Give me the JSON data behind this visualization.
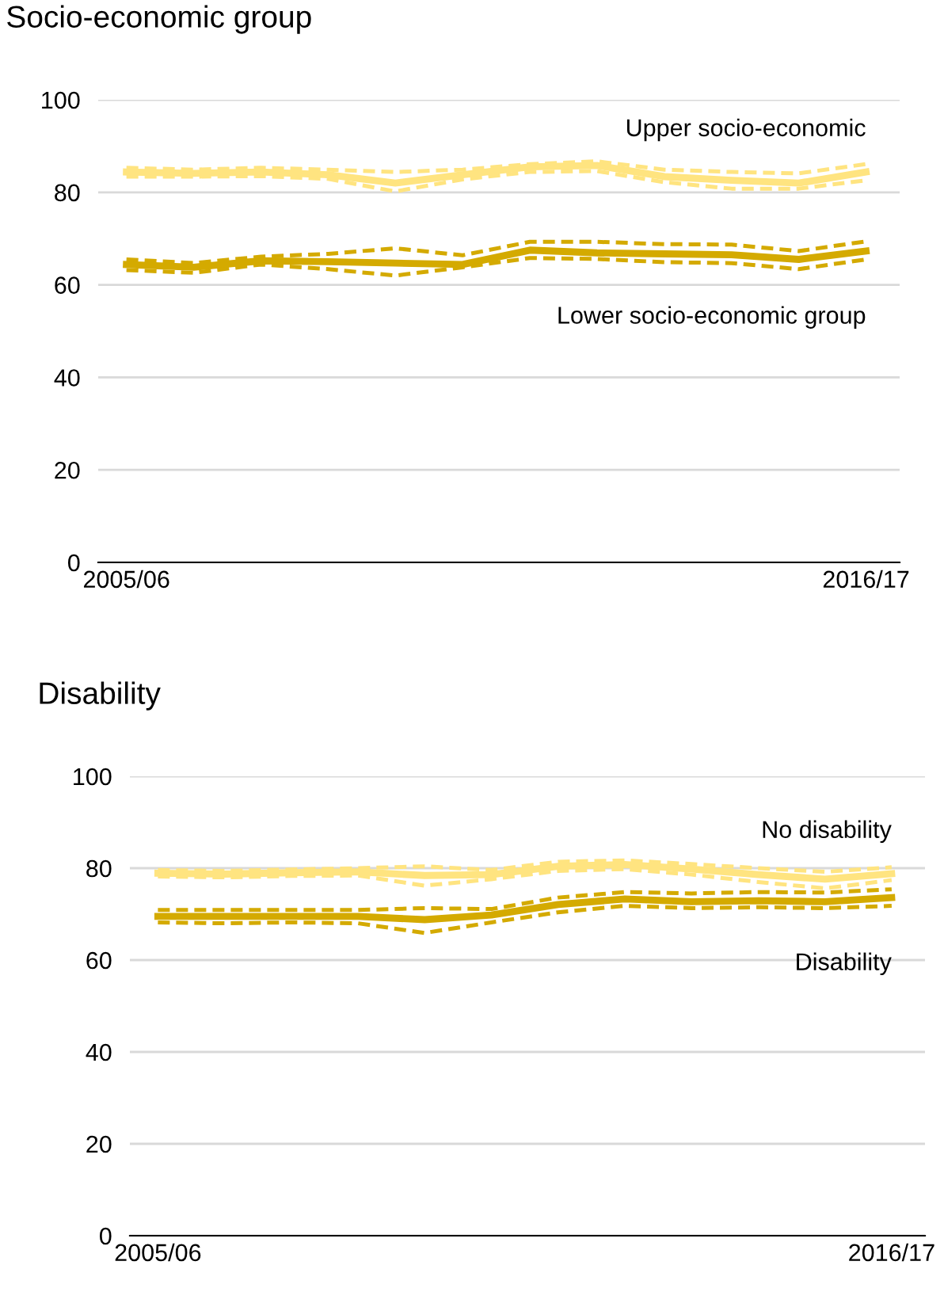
{
  "chart_data": [
    {
      "type": "line",
      "title": "Socio-economic group",
      "categories": [
        "2005/06",
        null,
        null,
        null,
        null,
        null,
        null,
        null,
        null,
        null,
        null,
        "2016/17"
      ],
      "ylim": [
        0,
        100
      ],
      "yticks": [
        0,
        20,
        40,
        60,
        80,
        100
      ],
      "grid": "y",
      "line_style": "solid",
      "series": [
        {
          "name": "Upper socio-economic",
          "color": "#ffe480",
          "values": [
            84.4,
            84.1,
            84.4,
            83.8,
            82.0,
            83.8,
            85.5,
            85.8,
            83.4,
            82.6,
            82.0,
            84.4
          ]
        },
        {
          "color": "#ffe480",
          "line_style": "dashed",
          "values": [
            83.4,
            83.4,
            83.5,
            82.9,
            80.2,
            82.8,
            84.4,
            84.6,
            82.2,
            80.8,
            80.8,
            82.6
          ]
        },
        {
          "color": "#ffe480",
          "line_style": "dashed",
          "values": [
            85.3,
            84.9,
            85.3,
            84.9,
            84.4,
            84.9,
            86.1,
            86.7,
            84.9,
            84.4,
            84.1,
            86.1
          ]
        },
        {
          "name": "Lower socio-economic group",
          "color": "#d4aa00",
          "values": [
            64.4,
            63.8,
            65.2,
            65.0,
            64.7,
            64.4,
            67.5,
            66.9,
            66.7,
            66.5,
            65.5,
            67.3
          ]
        },
        {
          "color": "#d4aa00",
          "line_style": "dashed",
          "values": [
            63.2,
            62.6,
            64.4,
            63.4,
            62.0,
            63.8,
            65.8,
            65.6,
            64.9,
            64.7,
            63.4,
            65.5
          ]
        },
        {
          "color": "#d4aa00",
          "line_style": "dashed",
          "values": [
            65.5,
            64.7,
            66.1,
            66.7,
            67.9,
            66.4,
            69.3,
            69.3,
            68.8,
            68.7,
            67.3,
            69.4
          ]
        }
      ]
    },
    {
      "type": "line",
      "title": "Disability",
      "categories": [
        "2005/06",
        null,
        null,
        null,
        null,
        null,
        null,
        null,
        null,
        null,
        null,
        "2016/17"
      ],
      "ylim": [
        0,
        100
      ],
      "yticks": [
        0,
        20,
        40,
        60,
        80,
        100
      ],
      "grid": "y",
      "line_style": "solid",
      "series": [
        {
          "name": "No disability",
          "color": "#ffe480",
          "values": [
            78.9,
            78.7,
            79.0,
            79.2,
            78.4,
            78.6,
            80.4,
            80.8,
            79.8,
            78.6,
            77.6,
            78.8
          ]
        },
        {
          "color": "#ffe480",
          "line_style": "dashed",
          "values": [
            78.2,
            78.0,
            78.3,
            78.4,
            76.2,
            77.6,
            79.4,
            79.8,
            78.6,
            77.0,
            75.6,
            77.4
          ]
        },
        {
          "color": "#ffe480",
          "line_style": "dashed",
          "values": [
            79.6,
            79.4,
            79.7,
            80.0,
            80.4,
            79.6,
            81.4,
            81.7,
            80.9,
            80.0,
            79.2,
            80.2
          ]
        },
        {
          "name": "Disability",
          "color": "#d4aa00",
          "values": [
            69.5,
            69.5,
            69.5,
            69.5,
            68.8,
            69.8,
            72.1,
            73.3,
            72.7,
            72.9,
            72.7,
            73.6
          ]
        },
        {
          "color": "#d4aa00",
          "line_style": "dashed",
          "values": [
            68.2,
            68.0,
            68.2,
            68.0,
            65.9,
            68.2,
            70.4,
            71.8,
            71.3,
            71.5,
            71.3,
            71.8
          ]
        },
        {
          "color": "#d4aa00",
          "line_style": "dashed",
          "values": [
            70.9,
            70.9,
            70.9,
            70.9,
            71.3,
            71.1,
            73.6,
            74.8,
            74.5,
            74.8,
            74.7,
            75.4
          ]
        }
      ]
    }
  ]
}
